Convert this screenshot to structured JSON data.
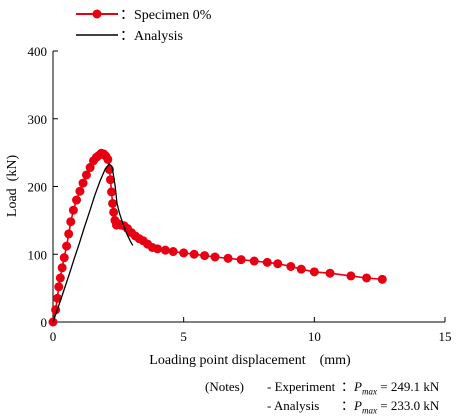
{
  "chart_data": {
    "type": "line",
    "xlabel": "Loading point displacement (mm)",
    "ylabel": "Load (kN)",
    "xlim": [
      0,
      15
    ],
    "ylim": [
      0,
      400
    ],
    "xticks": [
      "0",
      "5",
      "10",
      "15"
    ],
    "yticks": [
      "0",
      "100",
      "200",
      "300",
      "400"
    ],
    "grid": false,
    "legend_position": "top-left",
    "series": [
      {
        "name": "Specimen 0%",
        "color": "#e60012",
        "marker": "circle",
        "x": [
          0.0,
          0.1,
          0.17,
          0.22,
          0.28,
          0.35,
          0.43,
          0.52,
          0.6,
          0.68,
          0.78,
          0.9,
          1.03,
          1.15,
          1.28,
          1.42,
          1.55,
          1.66,
          1.76,
          1.85,
          1.94,
          2.02,
          2.1,
          2.16,
          2.2,
          2.24,
          2.28,
          2.32,
          2.37,
          2.43,
          2.5,
          2.6,
          2.72,
          2.85,
          3.0,
          3.15,
          3.3,
          3.45,
          3.62,
          3.8,
          4.0,
          4.3,
          4.6,
          5.0,
          5.4,
          5.8,
          6.2,
          6.7,
          7.2,
          7.7,
          8.2,
          8.6,
          9.1,
          9.5,
          10.0,
          10.6,
          11.4,
          12.0,
          12.6
        ],
        "y": [
          0,
          18,
          35,
          52,
          65,
          80,
          95,
          112,
          130,
          148,
          165,
          180,
          193,
          205,
          217,
          228,
          238,
          243,
          246,
          249.1,
          248,
          245,
          240,
          225,
          210,
          192,
          175,
          162,
          150,
          143,
          145,
          143,
          142,
          138,
          132,
          127,
          123,
          120,
          115,
          110,
          108,
          106,
          104,
          102,
          100,
          98,
          96,
          94,
          92,
          90,
          88,
          86,
          82,
          78,
          74,
          72,
          68,
          65,
          63
        ]
      },
      {
        "name": "Analysis",
        "color": "#000000",
        "marker": "none",
        "x": [
          0.0,
          0.2,
          0.4,
          0.6,
          0.8,
          1.0,
          1.2,
          1.4,
          1.6,
          1.8,
          2.0,
          2.15,
          2.25,
          2.3,
          2.38,
          2.45,
          2.55,
          2.65,
          2.75,
          2.85,
          2.95,
          3.05
        ],
        "y": [
          0,
          22,
          45,
          68,
          92,
          115,
          140,
          163,
          187,
          208,
          226,
          233,
          230,
          220,
          200,
          175,
          160,
          148,
          137,
          128,
          120,
          113
        ]
      }
    ]
  },
  "legend": {
    "specimen_label": "：Specimen 0%",
    "analysis_label": "：Analysis"
  },
  "notes": {
    "header": "(Notes)",
    "experiment_label": "- Experiment",
    "experiment_value": "：",
    "experiment_pmax": "249.1 kN",
    "analysis_label": "- Analysis",
    "analysis_value": "：",
    "analysis_pmax": "233.0 kN",
    "pmax_symbol": "P",
    "pmax_subscript": "max"
  }
}
